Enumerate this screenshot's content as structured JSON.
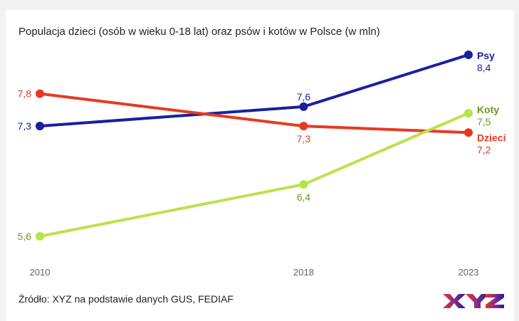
{
  "title": "Populacja dzieci (osób w wieku 0-18 lat) oraz psów i kotów w Polsce (w mln)",
  "source": "Źródło: XYZ na podstawie danych GUS, FEDIAF",
  "logo_text": "XYZ",
  "chart_data": {
    "type": "line",
    "title": "Populacja dzieci (osób w wieku 0-18 lat) oraz psów i kotów w Polsce (w mln)",
    "x": [
      2010,
      2018,
      2023
    ],
    "x_tick_labels": [
      "2010",
      "2018",
      "2023"
    ],
    "ylim": [
      5.3,
      8.6
    ],
    "grid": false,
    "legend": "inline labels at line ends",
    "series": [
      {
        "name": "Psy",
        "values": [
          7.3,
          7.6,
          8.4
        ],
        "labels": [
          "7,3",
          "7,6",
          "8,4"
        ],
        "color": "#1a1f9e"
      },
      {
        "name": "Dzieci",
        "values": [
          7.8,
          7.3,
          7.2
        ],
        "labels": [
          "7,8",
          "7,3",
          "7,2"
        ],
        "color": "#e8391f"
      },
      {
        "name": "Koty",
        "values": [
          5.6,
          6.4,
          7.5
        ],
        "labels": [
          "5,6",
          "6,4",
          "7,5"
        ],
        "color": "#b9e34a",
        "label_color": "#6a9a1f"
      }
    ]
  }
}
